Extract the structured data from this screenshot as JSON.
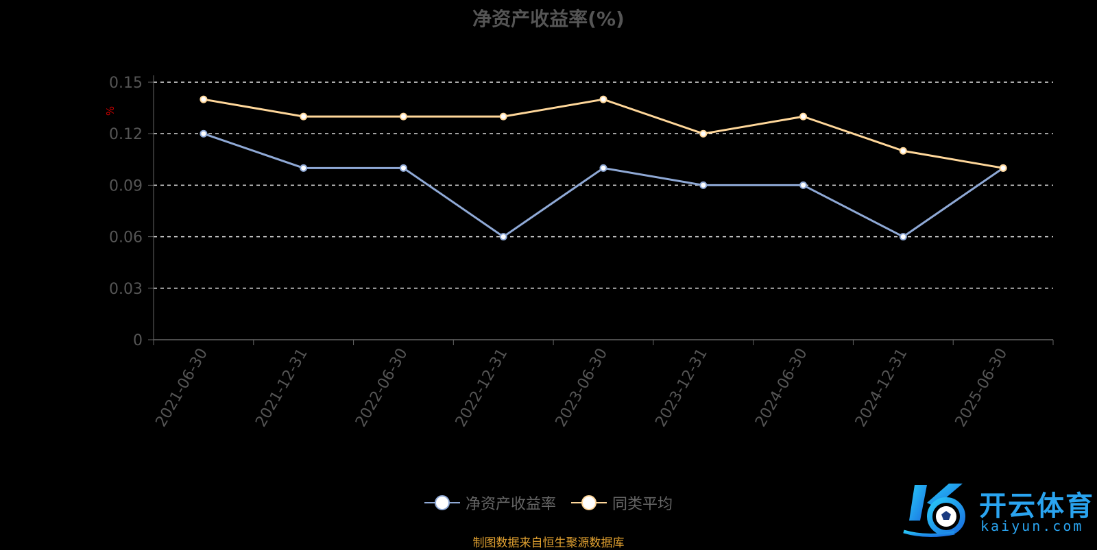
{
  "chart_data": {
    "type": "line",
    "title": "净资产收益率(%)",
    "ylabel": "%",
    "xlabel": "",
    "categories": [
      "2021-06-30",
      "2021-12-31",
      "2022-06-30",
      "2022-12-31",
      "2023-06-30",
      "2023-12-31",
      "2024-06-30",
      "2024-12-31",
      "2025-06-30"
    ],
    "ylim": [
      0,
      0.15
    ],
    "yticks": [
      "0",
      "0.03",
      "0.06",
      "0.09",
      "0.12",
      "0.15"
    ],
    "ytick_values": [
      0,
      0.03,
      0.06,
      0.09,
      0.12,
      0.15
    ],
    "grid": true,
    "legend_position": "bottom-center",
    "series": [
      {
        "name": "净资产收益率",
        "color": "#8fa9d6",
        "values": [
          0.12,
          0.1,
          0.1,
          0.06,
          0.1,
          0.09,
          0.09,
          0.06,
          0.1
        ]
      },
      {
        "name": "同类平均",
        "color": "#ffd79a",
        "values": [
          0.14,
          0.13,
          0.13,
          0.13,
          0.14,
          0.12,
          0.13,
          0.11,
          0.1
        ]
      }
    ]
  },
  "source_note": "制图数据来自恒生聚源数据库",
  "logo": {
    "name_cn": "开云体育",
    "name_en": "kaiyun.com",
    "icon": "kaiyun-soccer-logo-icon"
  }
}
